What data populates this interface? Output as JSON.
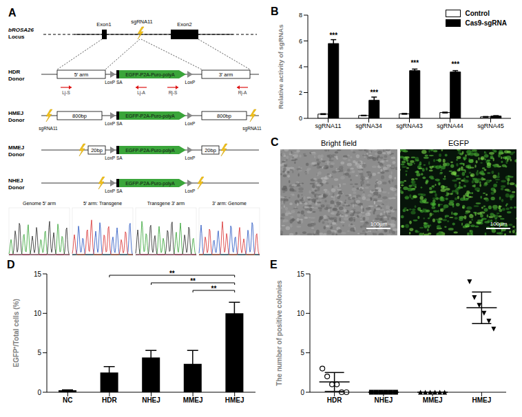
{
  "panel_a": {
    "label": "A",
    "locus": {
      "name": "bROSA26",
      "sub": "Locus",
      "exon1": "Exon1",
      "exon2": "Exon2",
      "sgrna": "sgRNA11"
    },
    "elements": {
      "loxp": "LoxP",
      "sa": "SA",
      "cassette": "EGFP-P2A-Puro-polyA",
      "donor": "Donor"
    },
    "donors": [
      {
        "name": "HDR",
        "left_arm": "5′ arm",
        "right_arm": "3′ arm",
        "primers": [
          "Lj-S",
          "Lj-A",
          "Rj-S",
          "Rj-A"
        ]
      },
      {
        "name": "HMEJ",
        "left_arm": "800bp",
        "right_arm": "800bp",
        "cut_label": "sgRNA11"
      },
      {
        "name": "MMEJ",
        "left_arm": "20bp",
        "right_arm": "20bp"
      },
      {
        "name": "NHEJ"
      }
    ],
    "junctions": [
      "Genome 5′ arm",
      "5′ arm: Transgene",
      "Transgene 3′ arm",
      "3′ arm: Genome"
    ]
  },
  "panel_c": {
    "label": "C",
    "images": [
      "Bright field",
      "EGFP"
    ],
    "scale_bar": "100μm"
  },
  "chart_data": [
    {
      "type": "bar",
      "title": "B",
      "categories": [
        "sgRNA11",
        "sgRNA34",
        "sgRNA43",
        "sgRNA44",
        "sgRNA45"
      ],
      "series": [
        {
          "name": "Control",
          "color": "#ffffff",
          "values": [
            0.33,
            0.22,
            0.35,
            0.45,
            0.12
          ],
          "errors": [
            0.03,
            0.02,
            0.03,
            0.03,
            0.02
          ]
        },
        {
          "name": "Cas9-sgRNA",
          "color": "#000000",
          "values": [
            5.8,
            1.4,
            3.7,
            3.6,
            0.18
          ],
          "errors": [
            0.3,
            0.25,
            0.12,
            0.1,
            0.03
          ]
        }
      ],
      "y_label": "Relative activity of sgRNAs",
      "ylim": [
        0,
        8
      ],
      "yticks": [
        0,
        2,
        4,
        6,
        8
      ],
      "legend": "upper right",
      "annotations": [
        {
          "category": "sgRNA11",
          "label": "***"
        },
        {
          "category": "sgRNA34",
          "label": "***"
        },
        {
          "category": "sgRNA43",
          "label": "***"
        },
        {
          "category": "sgRNA44",
          "label": "***"
        }
      ]
    },
    {
      "type": "bar",
      "title": "D",
      "categories": [
        "NC",
        "HDR",
        "NHEJ",
        "MMEJ",
        "HMEJ"
      ],
      "values": [
        0.25,
        2.5,
        4.4,
        3.6,
        10.0
      ],
      "errors": [
        0.05,
        0.75,
        0.9,
        1.7,
        1.4
      ],
      "color": "#000000",
      "y_label": "EGFP⁺/Total cells (%)",
      "ylim": [
        0,
        15
      ],
      "yticks": [
        0,
        5,
        10,
        15
      ],
      "significance": [
        {
          "from": "HDR",
          "to": "HMEJ",
          "label": "**"
        },
        {
          "from": "NHEJ",
          "to": "HMEJ",
          "label": "**"
        },
        {
          "from": "MMEJ",
          "to": "HMEJ",
          "label": "**"
        }
      ]
    },
    {
      "type": "scatter",
      "title": "E",
      "series": [
        {
          "name": "HDR",
          "marker": "circle",
          "values": [
            3,
            2,
            1,
            1,
            0,
            0
          ],
          "mean": 1.3,
          "sd": 1.2
        },
        {
          "name": "NHEJ",
          "marker": "square",
          "values": [
            0,
            0,
            0,
            0,
            0,
            0
          ],
          "mean": 0,
          "sd": 0
        },
        {
          "name": "MMEJ",
          "marker": "triangle",
          "values": [
            0,
            0,
            0,
            0,
            0,
            0
          ],
          "mean": 0,
          "sd": 0
        },
        {
          "name": "HMEJ",
          "marker": "triangle-down",
          "values": [
            14,
            12,
            11,
            10,
            9,
            8
          ],
          "mean": 10.7,
          "sd": 2.0
        }
      ],
      "color": "#000000",
      "y_label": "The number of positive colonies",
      "ylim": [
        0,
        15
      ],
      "yticks": [
        0,
        5,
        10,
        15
      ]
    }
  ]
}
